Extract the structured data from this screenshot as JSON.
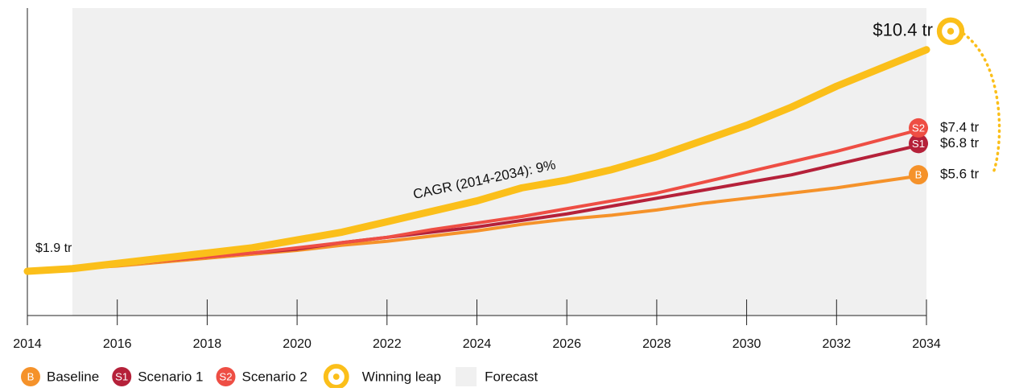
{
  "chart_data": {
    "type": "line",
    "annotation": "CAGR (2014-2034): 9%",
    "x": [
      2014,
      2015,
      2016,
      2017,
      2018,
      2019,
      2020,
      2021,
      2022,
      2023,
      2024,
      2025,
      2026,
      2027,
      2028,
      2029,
      2030,
      2031,
      2032,
      2033,
      2034
    ],
    "xlim": [
      2014,
      2034
    ],
    "xticks": [
      2014,
      2016,
      2018,
      2020,
      2022,
      2024,
      2026,
      2028,
      2030,
      2032,
      2034
    ],
    "ylim": [
      0.2,
      12
    ],
    "forecast": {
      "label": "Forecast",
      "start": 2015,
      "color": "#f0f0f0"
    },
    "series": [
      {
        "name": "Baseline",
        "badge": "B",
        "color": "#f5922a",
        "width": 4,
        "values": [
          1.9,
          2.0,
          2.1,
          2.25,
          2.4,
          2.55,
          2.7,
          2.9,
          3.05,
          3.25,
          3.45,
          3.7,
          3.9,
          4.05,
          4.25,
          4.5,
          4.7,
          4.9,
          5.1,
          5.35,
          5.6
        ],
        "value_labels": [
          null,
          null,
          null,
          null,
          null,
          null,
          null,
          null,
          null,
          null,
          null,
          null,
          null,
          null,
          null,
          null,
          null,
          null,
          null,
          null,
          "$5.6 tr"
        ]
      },
      {
        "name": "Scenario 1",
        "badge": "S1",
        "color": "#b5213a",
        "width": 4,
        "values": [
          1.9,
          2.0,
          2.15,
          2.3,
          2.45,
          2.6,
          2.75,
          3.0,
          3.2,
          3.4,
          3.6,
          3.85,
          4.1,
          4.4,
          4.7,
          5.0,
          5.3,
          5.6,
          6.0,
          6.4,
          6.8
        ],
        "value_labels": [
          null,
          null,
          null,
          null,
          null,
          null,
          null,
          null,
          null,
          null,
          null,
          null,
          null,
          null,
          null,
          null,
          null,
          null,
          null,
          null,
          "$6.8 tr"
        ]
      },
      {
        "name": "Scenario 2",
        "badge": "S2",
        "color": "#ee4e44",
        "width": 4,
        "values": [
          1.9,
          2.0,
          2.15,
          2.3,
          2.45,
          2.6,
          2.8,
          3.0,
          3.2,
          3.5,
          3.75,
          4.0,
          4.3,
          4.6,
          4.9,
          5.3,
          5.7,
          6.1,
          6.5,
          6.95,
          7.4
        ],
        "value_labels": [
          null,
          null,
          null,
          null,
          null,
          null,
          null,
          null,
          null,
          null,
          null,
          null,
          null,
          null,
          null,
          null,
          null,
          null,
          null,
          null,
          "$7.4 tr"
        ]
      },
      {
        "name": "Winning leap",
        "color": "#fbbf1a",
        "width": 9,
        "values": [
          1.9,
          2.0,
          2.2,
          2.4,
          2.6,
          2.8,
          3.1,
          3.4,
          3.8,
          4.2,
          4.6,
          5.1,
          5.4,
          5.8,
          6.3,
          6.9,
          7.5,
          8.2,
          9.0,
          9.7,
          10.4
        ],
        "value_labels": [
          "$1.9 tr",
          null,
          null,
          null,
          null,
          null,
          null,
          null,
          null,
          null,
          null,
          null,
          null,
          null,
          null,
          null,
          null,
          null,
          null,
          null,
          "$10.4 tr"
        ]
      }
    ]
  }
}
